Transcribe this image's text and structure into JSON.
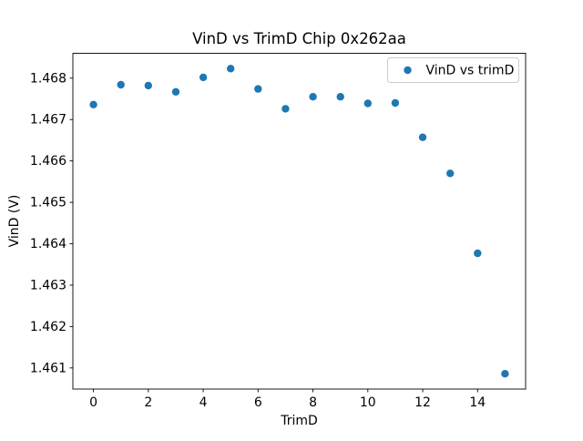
{
  "chart_data": {
    "type": "scatter",
    "title": "VinD vs TrimD Chip 0x262aa",
    "xlabel": "TrimD",
    "ylabel": "VinD (V)",
    "legend": {
      "label": "VinD vs trimD",
      "position": "upper right"
    },
    "x": [
      0,
      1,
      2,
      3,
      4,
      5,
      6,
      7,
      8,
      9,
      10,
      11,
      12,
      13,
      14,
      15
    ],
    "y": [
      1.46736,
      1.46784,
      1.46782,
      1.46767,
      1.46802,
      1.46823,
      1.46774,
      1.46726,
      1.46755,
      1.46755,
      1.46739,
      1.4674,
      1.46657,
      1.4657,
      1.46377,
      1.46086
    ],
    "xlim": [
      -0.75,
      15.75
    ],
    "ylim": [
      1.46049,
      1.4686
    ],
    "xticks": [
      0,
      2,
      4,
      6,
      8,
      10,
      12,
      14
    ],
    "xtick_labels": [
      "0",
      "2",
      "4",
      "6",
      "8",
      "10",
      "12",
      "14"
    ],
    "yticks": [
      1.461,
      1.462,
      1.463,
      1.464,
      1.465,
      1.466,
      1.467,
      1.468
    ],
    "ytick_labels": [
      "1.461",
      "1.462",
      "1.463",
      "1.464",
      "1.465",
      "1.466",
      "1.467",
      "1.468"
    ],
    "grid": false,
    "marker": {
      "shape": "circle",
      "radius": 4.2
    },
    "colors": {
      "marker": "#1f77b4",
      "spine": "#000000",
      "text": "#000000",
      "legend_border": "#cccccc",
      "background": "#ffffff"
    }
  }
}
